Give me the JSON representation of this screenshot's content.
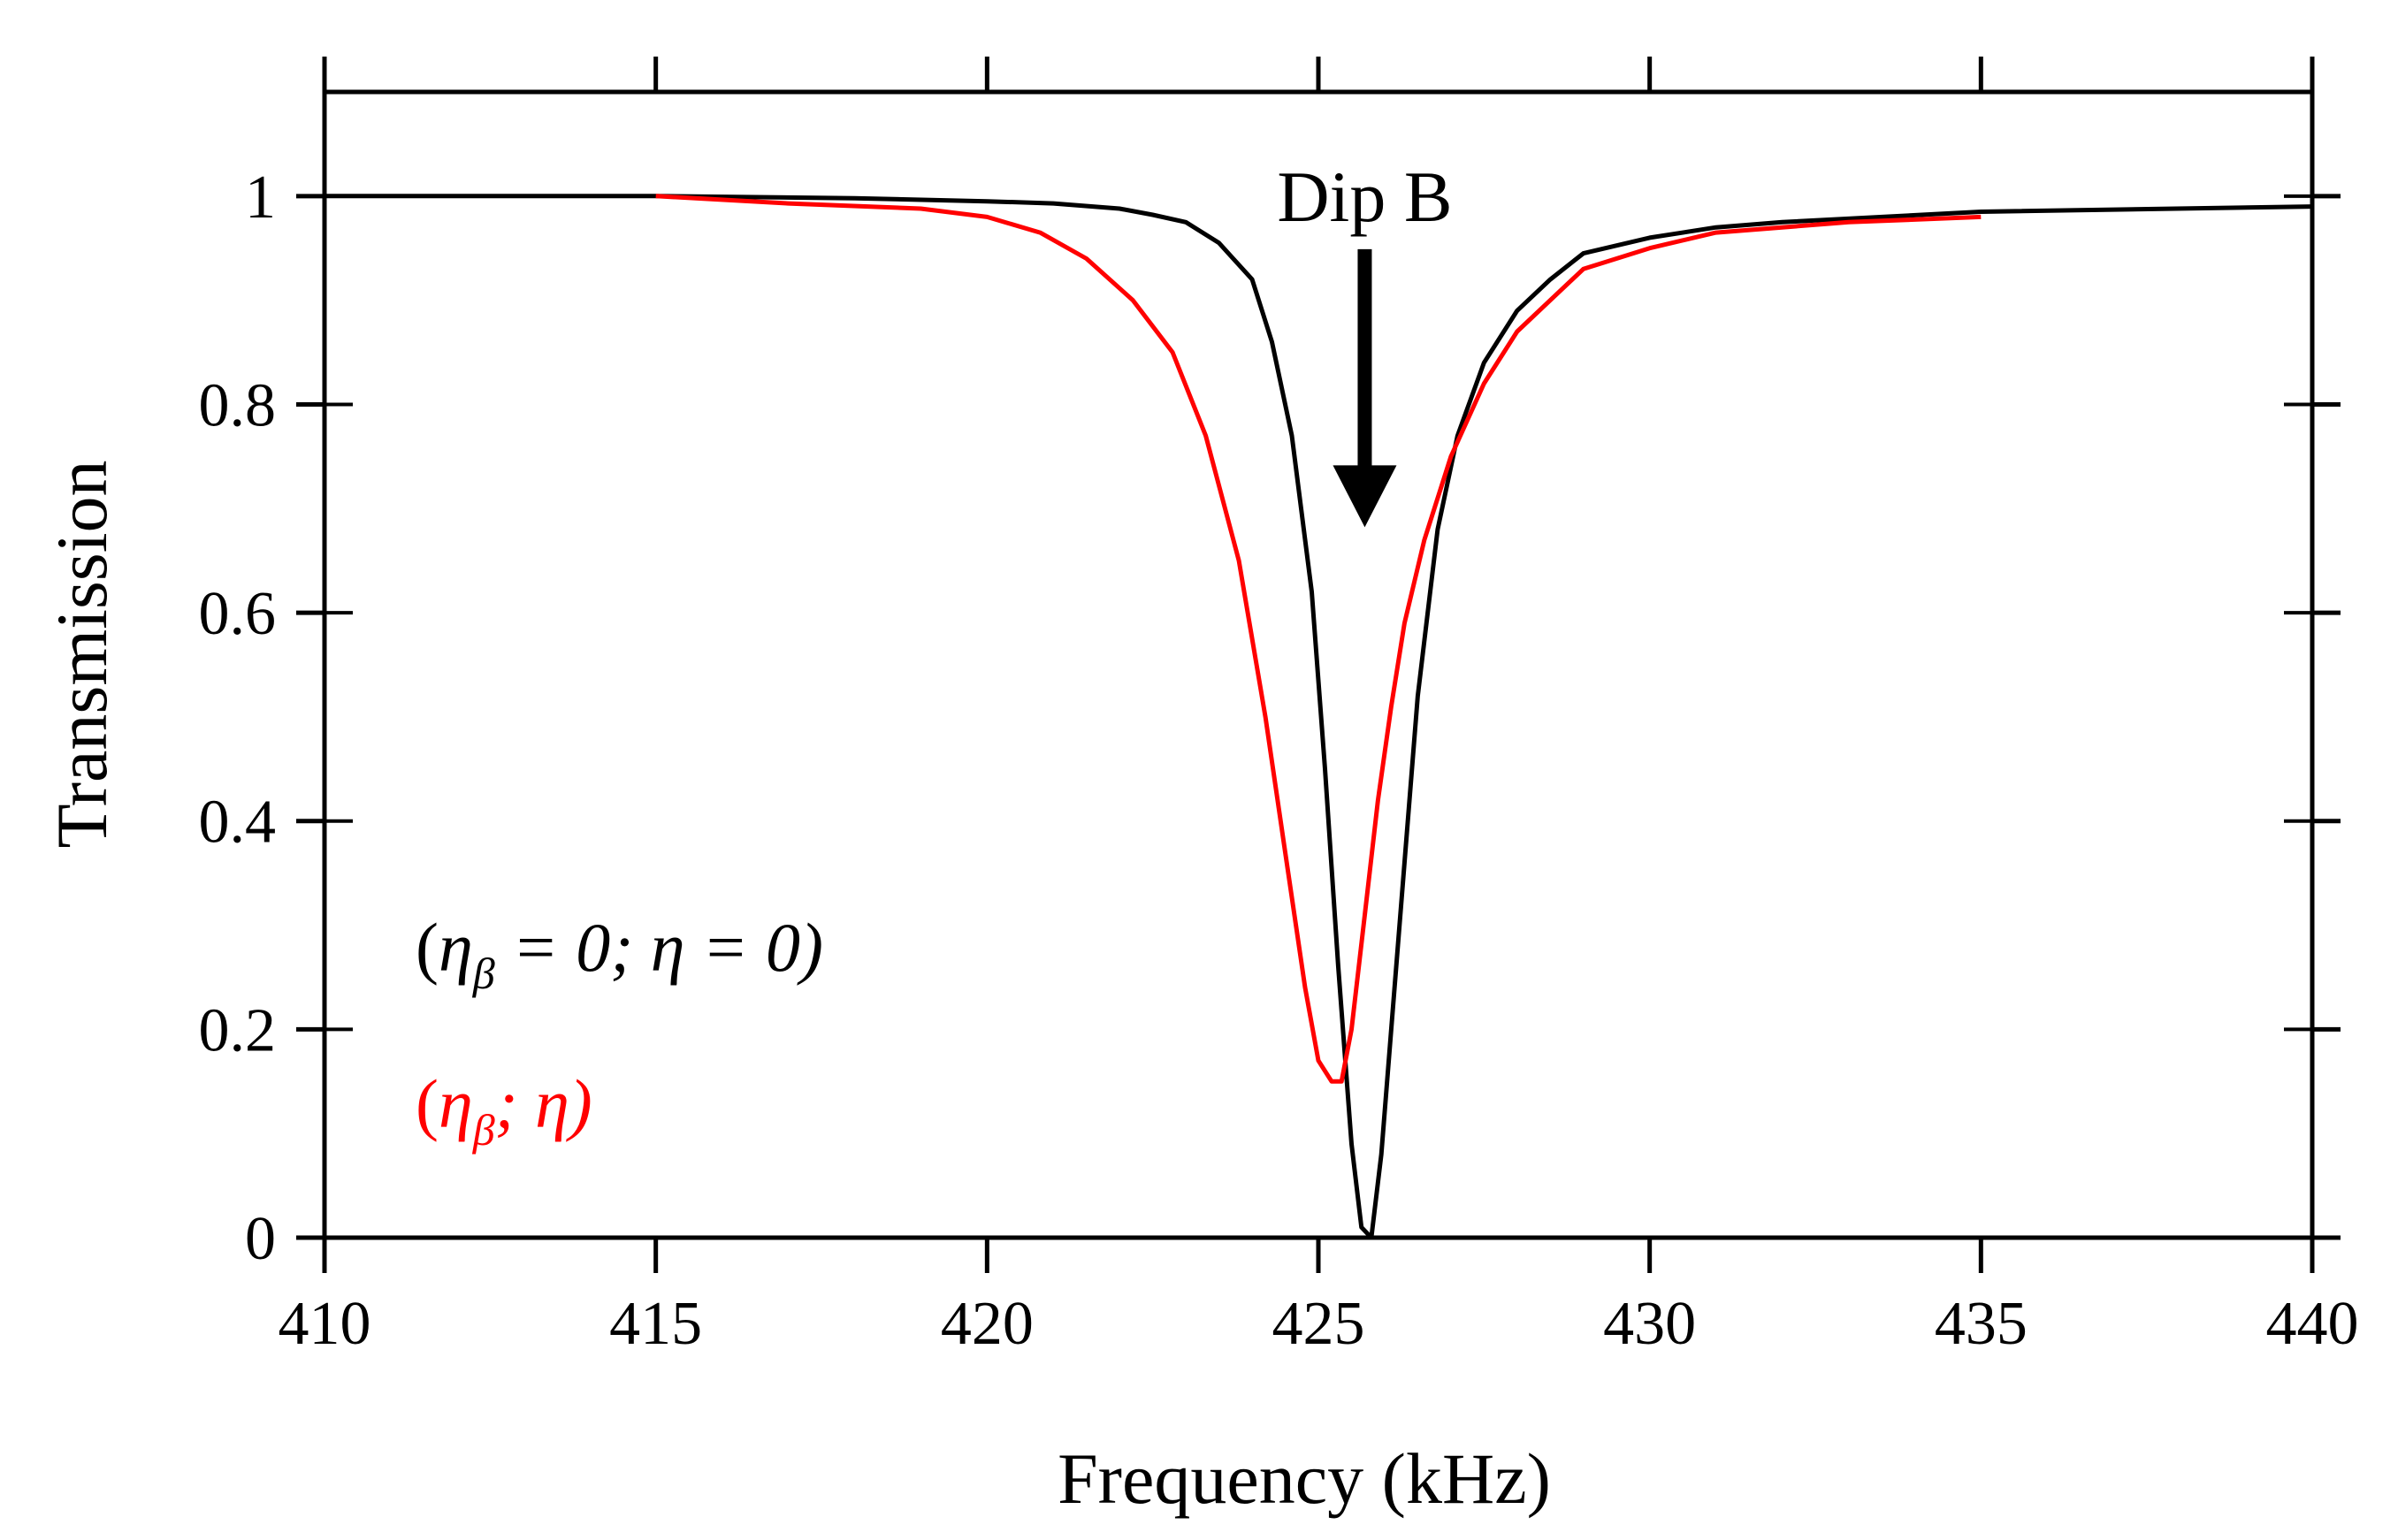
{
  "chart_data": {
    "type": "line",
    "xlabel": "Frequency (kHz)",
    "ylabel": "Transmission",
    "xlim": [
      410,
      440
    ],
    "ylim": [
      0,
      1.1
    ],
    "xticks": [
      410,
      415,
      420,
      425,
      430,
      435,
      440
    ],
    "xtick_labels": [
      "410",
      "415",
      "420",
      "425",
      "430",
      "435",
      "440"
    ],
    "yticks": [
      0,
      0.2,
      0.4,
      0.6,
      0.8,
      1
    ],
    "ytick_labels": [
      "0",
      "0.2",
      "0.4",
      "0.6",
      "0.8",
      "1"
    ],
    "grid": false,
    "annotations": [
      {
        "text": "Dip B",
        "x": 425.7,
        "y": 1.0,
        "arrow_to": [
          425.7,
          0.75
        ]
      }
    ],
    "series": [
      {
        "name": "( η_β = 0; η = 0)",
        "color": "#000000",
        "x": [
          410,
          415,
          418,
          420,
          421,
          422,
          422.5,
          423,
          423.5,
          424,
          424.3,
          424.6,
          424.9,
          425.1,
          425.3,
          425.5,
          425.65,
          425.8,
          425.95,
          426.1,
          426.3,
          426.5,
          426.8,
          427.1,
          427.5,
          428,
          428.5,
          429,
          430,
          431,
          432,
          435,
          440
        ],
        "values": [
          1.0,
          1.0,
          0.998,
          0.995,
          0.993,
          0.988,
          0.982,
          0.975,
          0.955,
          0.92,
          0.86,
          0.77,
          0.62,
          0.45,
          0.26,
          0.09,
          0.01,
          0.0,
          0.08,
          0.2,
          0.36,
          0.52,
          0.68,
          0.77,
          0.84,
          0.89,
          0.92,
          0.945,
          0.96,
          0.97,
          0.975,
          0.985,
          0.99
        ]
      },
      {
        "name": "(η_β; η)",
        "color": "#ff0000",
        "x": [
          415,
          417,
          419,
          420,
          420.8,
          421.5,
          422.2,
          422.8,
          423.3,
          423.8,
          424.2,
          424.5,
          424.8,
          425.0,
          425.2,
          425.35,
          425.5,
          425.7,
          425.9,
          426.1,
          426.3,
          426.6,
          427.0,
          427.5,
          428,
          428.5,
          429,
          430,
          431,
          433,
          435
        ],
        "values": [
          1.0,
          0.993,
          0.988,
          0.98,
          0.965,
          0.94,
          0.9,
          0.85,
          0.77,
          0.65,
          0.5,
          0.37,
          0.24,
          0.17,
          0.15,
          0.15,
          0.2,
          0.31,
          0.42,
          0.51,
          0.59,
          0.67,
          0.75,
          0.82,
          0.87,
          0.9,
          0.93,
          0.95,
          0.965,
          0.975,
          0.98
        ]
      }
    ],
    "legend": {
      "placement": "bottom-left",
      "entries": [
        {
          "open": "(",
          "eta": "η",
          "sub": "β",
          "rest": " = 0;  η = 0)",
          "color": "#000000"
        },
        {
          "open": "(",
          "eta": "η",
          "sub": "β",
          "rest": "; η)",
          "color": "#ff0000"
        }
      ]
    }
  }
}
